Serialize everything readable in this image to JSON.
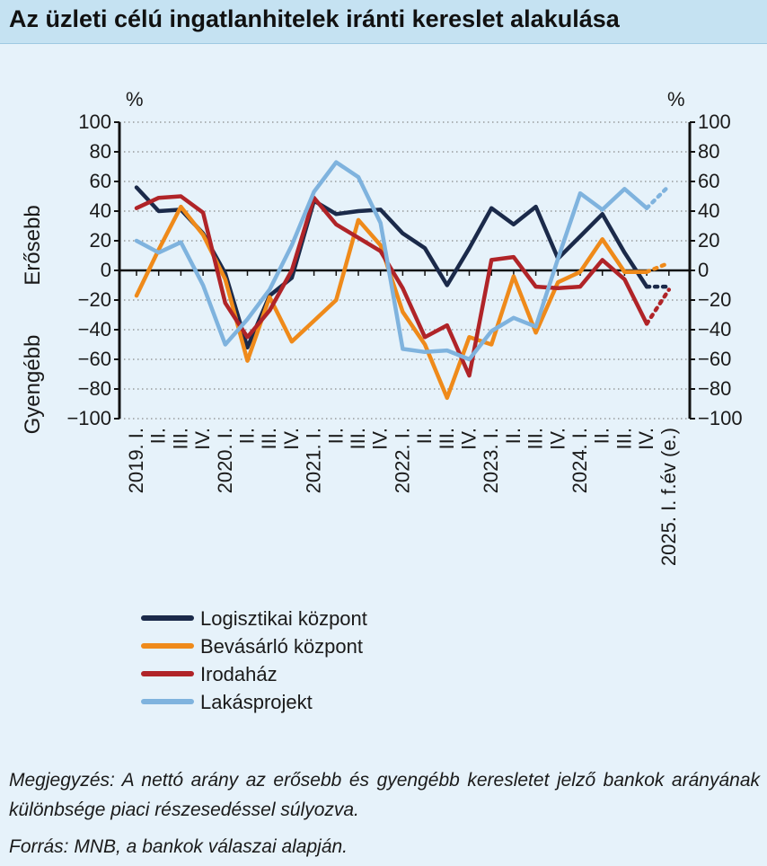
{
  "title": "Az üzleti célú ingatlanhitelek iránti kereslet alakulása",
  "chart_data": {
    "type": "line",
    "title": "Az üzleti célú ingatlanhitelek iránti kereslet alakulása",
    "unit_left": "%",
    "unit_right": "%",
    "side_label_top": "Erősebb",
    "side_label_bottom": "Gyengébb",
    "ylim": [
      -100,
      100
    ],
    "yticks": [
      100,
      80,
      60,
      40,
      20,
      0,
      -20,
      -40,
      -60,
      -80,
      -100
    ],
    "ytick_labels": [
      "100",
      "80",
      "60",
      "40",
      "20",
      "0",
      "−20",
      "−40",
      "−60",
      "−80",
      "−100"
    ],
    "grid": "horizontal-dotted",
    "x_labels": [
      "2019. I.",
      "II.",
      "III.",
      "IV.",
      "2020. I.",
      "II.",
      "III.",
      "IV.",
      "2021. I.",
      "II.",
      "III.",
      "IV.",
      "2022. I.",
      "II.",
      "III.",
      "IV.",
      "2023. I.",
      "II.",
      "III.",
      "IV.",
      "2024. I.",
      "II.",
      "III.",
      "IV.",
      "2025. I. f.év (e.)"
    ],
    "forecast_index": 24,
    "series": [
      {
        "name": "Logisztikai központ",
        "color": "#1b2a4a",
        "values": [
          56,
          40,
          41,
          25,
          -2,
          -52,
          -17,
          -5,
          47,
          38,
          40,
          41,
          25,
          15,
          -10,
          15,
          42,
          31,
          43,
          8,
          23,
          38,
          12,
          -11,
          -11
        ]
      },
      {
        "name": "Bevásárló központ",
        "color": "#ef8a1a",
        "values": [
          -17,
          14,
          43,
          24,
          -6,
          -61,
          -18,
          -48,
          -34,
          -20,
          34,
          17,
          -28,
          -50,
          -86,
          -45,
          -50,
          -4,
          -42,
          -8,
          -1,
          21,
          -1,
          -1,
          5
        ]
      },
      {
        "name": "Irodaház",
        "color": "#b02428",
        "values": [
          42,
          49,
          50,
          39,
          -22,
          -45,
          -27,
          0,
          49,
          31,
          22,
          13,
          -12,
          -45,
          -37,
          -71,
          7,
          9,
          -11,
          -12,
          -11,
          7,
          -6,
          -36,
          -13
        ]
      },
      {
        "name": "Lakásprojekt",
        "color": "#7fb3de",
        "values": [
          20,
          12,
          19,
          -10,
          -50,
          -33,
          -13,
          17,
          53,
          73,
          63,
          32,
          -53,
          -55,
          -54,
          -60,
          -41,
          -32,
          -38,
          8,
          52,
          41,
          55,
          42,
          57
        ]
      }
    ]
  },
  "notes": {
    "note": "Megjegyzés: A nettó arány az erősebb és gyengébb keresletet jelző bankok arányának különbsége piaci részesedéssel súlyozva.",
    "source": "Forrás: MNB, a bankok válaszai alapján."
  }
}
